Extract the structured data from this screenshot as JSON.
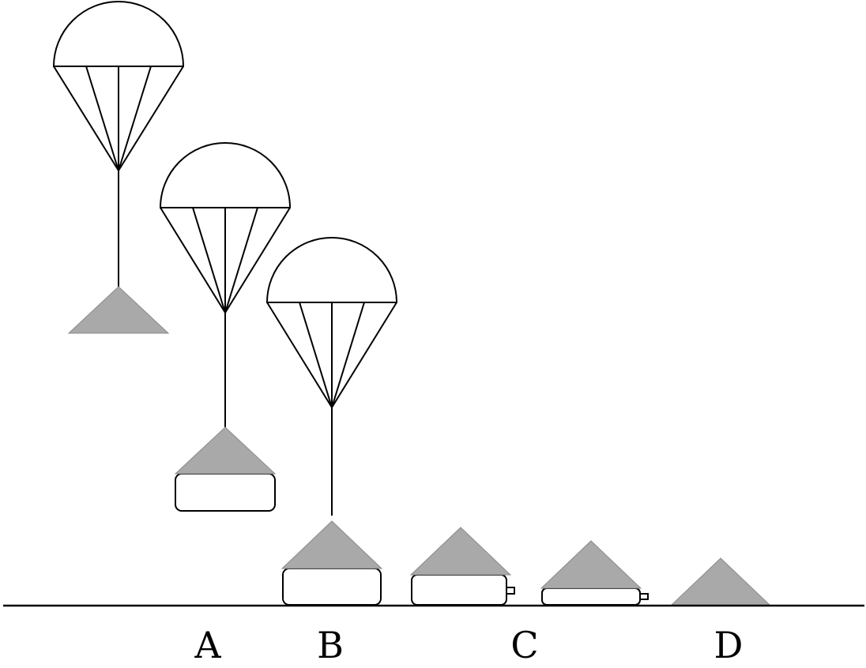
{
  "labels": {
    "a": "A",
    "b": "B",
    "c": "C",
    "d": "D"
  },
  "colors": {
    "stroke": "#000000",
    "payload_fill": "#a9a9a9",
    "background": "#ffffff"
  }
}
